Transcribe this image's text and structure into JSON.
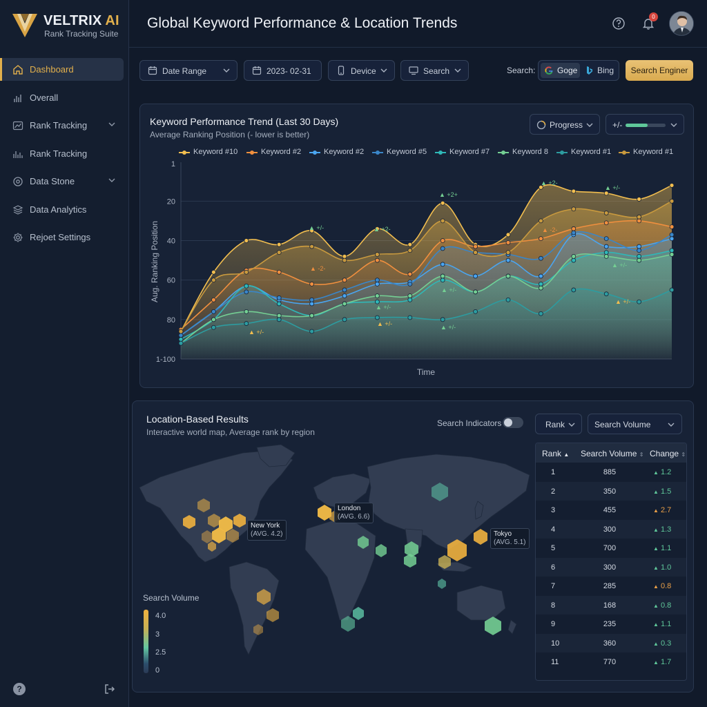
{
  "brand": {
    "name": "VELTRIX",
    "name_ai": "AI",
    "subtitle": "Rank Tracking Suite"
  },
  "sidebar": {
    "items": [
      {
        "label": "Dashboard",
        "icon": "home-icon",
        "active": true
      },
      {
        "label": "Overall",
        "icon": "bar-chart-icon"
      },
      {
        "label": "Rank Tracking",
        "icon": "trend-icon",
        "expandable": true
      },
      {
        "label": "Rank Tracking",
        "icon": "bars-icon"
      },
      {
        "label": "Data Stone",
        "icon": "database-icon",
        "expandable": true
      },
      {
        "label": "Data Analytics",
        "icon": "layers-icon"
      },
      {
        "label": "Rejoet Settings",
        "icon": "gear-icon"
      }
    ],
    "footer": {
      "help": "?"
    }
  },
  "header": {
    "title": "Global Keyword Performance & Location Trends",
    "notification_count": "0"
  },
  "filters": {
    "date_range": "Date Range",
    "date": "2023- 02-31",
    "device": "Device",
    "search": "Search",
    "search_label": "Search:",
    "engines": [
      "Goge",
      "Bing"
    ],
    "engine_button": "Search Enginer"
  },
  "trend": {
    "title": "Keyword Performance Trend (Last 30 Days)",
    "subtitle": "Average Ranking Position (- lower is better)",
    "progress_label": "Progress",
    "delta_label": "+/-",
    "delta_level": 0.55,
    "chart_data": {
      "type": "area",
      "ylabel": "Aug. Ranking Position",
      "xlabel": "Time",
      "y_ticks": [
        "1",
        "20",
        "40",
        "60",
        "80",
        "1-100"
      ],
      "ylim": [
        1,
        100
      ],
      "y_inverted": true,
      "legend_position": "top",
      "series": [
        {
          "name": "Keyword #10",
          "color": "#f2be4f",
          "values": [
            86,
            56,
            40,
            42,
            35,
            48,
            34,
            42,
            21,
            42,
            37,
            13,
            15,
            16,
            19,
            12
          ]
        },
        {
          "name": "Keyword #2",
          "color": "#f08f3e",
          "values": [
            85,
            70,
            55,
            56,
            62,
            60,
            50,
            57,
            40,
            43,
            41,
            39,
            34,
            31,
            30,
            33
          ]
        },
        {
          "name": "Keyword #2",
          "color": "#4aa5f0",
          "values": [
            88,
            76,
            63,
            70,
            72,
            68,
            62,
            61,
            52,
            58,
            50,
            58,
            37,
            43,
            43,
            39
          ]
        },
        {
          "name": "Keyword #5",
          "color": "#3a86c8",
          "values": [
            88,
            76,
            66,
            69,
            70,
            65,
            60,
            62,
            44,
            46,
            47,
            49,
            36,
            39,
            45,
            37
          ]
        },
        {
          "name": "Keyword #7",
          "color": "#2fb8b8",
          "values": [
            90,
            80,
            63,
            72,
            78,
            72,
            71,
            70,
            60,
            66,
            58,
            62,
            50,
            46,
            48,
            45
          ]
        },
        {
          "name": "Keyword 8",
          "color": "#74cf93",
          "values": [
            92,
            80,
            76,
            78,
            78,
            72,
            68,
            68,
            58,
            66,
            58,
            64,
            48,
            48,
            50,
            47
          ]
        },
        {
          "name": "Keyword #1",
          "color": "#2d9ca0",
          "values": [
            92,
            84,
            82,
            80,
            86,
            80,
            79,
            79,
            80,
            76,
            70,
            77,
            65,
            67,
            71,
            65
          ]
        },
        {
          "name": "Keyword #1",
          "color": "#c99a3e",
          "values": [
            86,
            60,
            56,
            46,
            43,
            50,
            47,
            45,
            30,
            46,
            46,
            30,
            24,
            26,
            28,
            20
          ]
        }
      ],
      "annotations": [
        {
          "text": "+/-",
          "color": "#74cf93"
        },
        {
          "text": "+2-",
          "color": "#74cf93"
        },
        {
          "text": "+2+",
          "color": "#74cf93"
        },
        {
          "text": "+2-",
          "color": "#74cf93"
        },
        {
          "text": "+/-",
          "color": "#74cf93"
        },
        {
          "text": "-2-",
          "color": "#f08f3e"
        },
        {
          "text": "-2-",
          "color": "#f08f3e"
        },
        {
          "text": "+/-",
          "color": "#74cf93"
        },
        {
          "text": "+/-",
          "color": "#74cf93"
        },
        {
          "text": "+/-",
          "color": "#74cf93"
        },
        {
          "text": "+/-",
          "color": "#f2be4f"
        },
        {
          "text": "+/-",
          "color": "#f2be4f"
        },
        {
          "text": "+/-",
          "color": "#74cf93"
        },
        {
          "text": "+/-",
          "color": "#f2be4f"
        }
      ]
    }
  },
  "location": {
    "title": "Location-Based Results",
    "subtitle": "Interactive world map, Average rank by region",
    "toggle_label": "Search Indicators",
    "rank_select": "Rank",
    "volume_select": "Search Volume",
    "cities": [
      {
        "name": "New York",
        "avg": "(AVG. 4.2)"
      },
      {
        "name": "London",
        "avg": "(AVG. 6.6)"
      },
      {
        "name": "Tokyo",
        "avg": "(AVG. 5.1)"
      }
    ],
    "legend": {
      "title": "Search Volume",
      "ticks": [
        "4.0",
        "3",
        "2.5",
        "0"
      ]
    },
    "table": {
      "headers": {
        "rank": "Rank",
        "volume": "Search Volume",
        "change": "Change"
      },
      "rows": [
        {
          "rank": "1",
          "volume": "885",
          "change": "1.2",
          "trend": "green"
        },
        {
          "rank": "2",
          "volume": "350",
          "change": "1.5",
          "trend": "green"
        },
        {
          "rank": "3",
          "volume": "455",
          "change": "2.7",
          "trend": "orange"
        },
        {
          "rank": "4",
          "volume": "300",
          "change": "1.3",
          "trend": "green"
        },
        {
          "rank": "5",
          "volume": "700",
          "change": "1.1",
          "trend": "green"
        },
        {
          "rank": "6",
          "volume": "300",
          "change": "1.0",
          "trend": "green"
        },
        {
          "rank": "7",
          "volume": "285",
          "change": "0.8",
          "trend": "orange"
        },
        {
          "rank": "8",
          "volume": "168",
          "change": "0.8",
          "trend": "green"
        },
        {
          "rank": "9",
          "volume": "235",
          "change": "1.1",
          "trend": "green"
        },
        {
          "rank": "10",
          "volume": "360",
          "change": "0.3",
          "trend": "green"
        },
        {
          "rank": "11",
          "volume": "770",
          "change": "1.7",
          "trend": "green"
        }
      ]
    }
  }
}
